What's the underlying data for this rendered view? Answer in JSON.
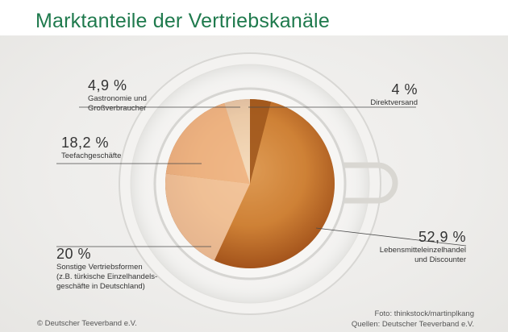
{
  "title": "Marktanteile der Vertriebskanäle",
  "chart_data": {
    "type": "pie",
    "title": "Marktanteile der Vertriebskanäle",
    "slices": [
      {
        "label": "Direktversand",
        "value": 4,
        "value_label": "4 %"
      },
      {
        "label": "Lebensmitteleinzelhandel und Discounter",
        "value": 52.9,
        "value_label": "52,9 %"
      },
      {
        "label": "Sonstige Vertriebsformen (z.B. türkische Einzelhandelsgeschäfte in Deutschland)",
        "value": 20,
        "value_label": "20 %"
      },
      {
        "label": "Teefachgeschäfte",
        "value": 18.2,
        "value_label": "18,2 %"
      },
      {
        "label": "Gastronomie und Großverbraucher",
        "value": 4.9,
        "value_label": "4,9 %"
      }
    ]
  },
  "labels": {
    "gastro": {
      "pct": "4,9 %",
      "l1": "Gastronomie und",
      "l2": "Großverbraucher"
    },
    "direkt": {
      "pct": "4 %",
      "l1": "Direktversand"
    },
    "teefach": {
      "pct": "18,2 %",
      "l1": "Teefachgeschäfte"
    },
    "lebensmittel": {
      "pct": "52,9 %",
      "l1": "Lebensmitteleinzelhandel",
      "l2": "und Discounter"
    },
    "sonstige": {
      "pct": "20 %",
      "l1": "Sonstige Vertriebsformen",
      "l2": "(z.B. türkische Einzelhandels-",
      "l3": "geschäfte in Deutschland)"
    }
  },
  "credits": {
    "copyright": "© Deutscher Teeverband e.V.",
    "foto": "Foto: thinkstock/martinplkang",
    "quellen": "Quellen: Deutscher Teeverband e.V."
  },
  "colors": {
    "title": "#1f7a4d",
    "tea_light": "#e0a867",
    "tea_dark": "#8a3d10",
    "slice_lebensmittel": "#c9742c",
    "slice_teefach": "#f1b98c",
    "slice_sonstige": "#f4c9a4",
    "slice_gastro": "#ffffff",
    "slice_direkt": "#a0561c"
  }
}
